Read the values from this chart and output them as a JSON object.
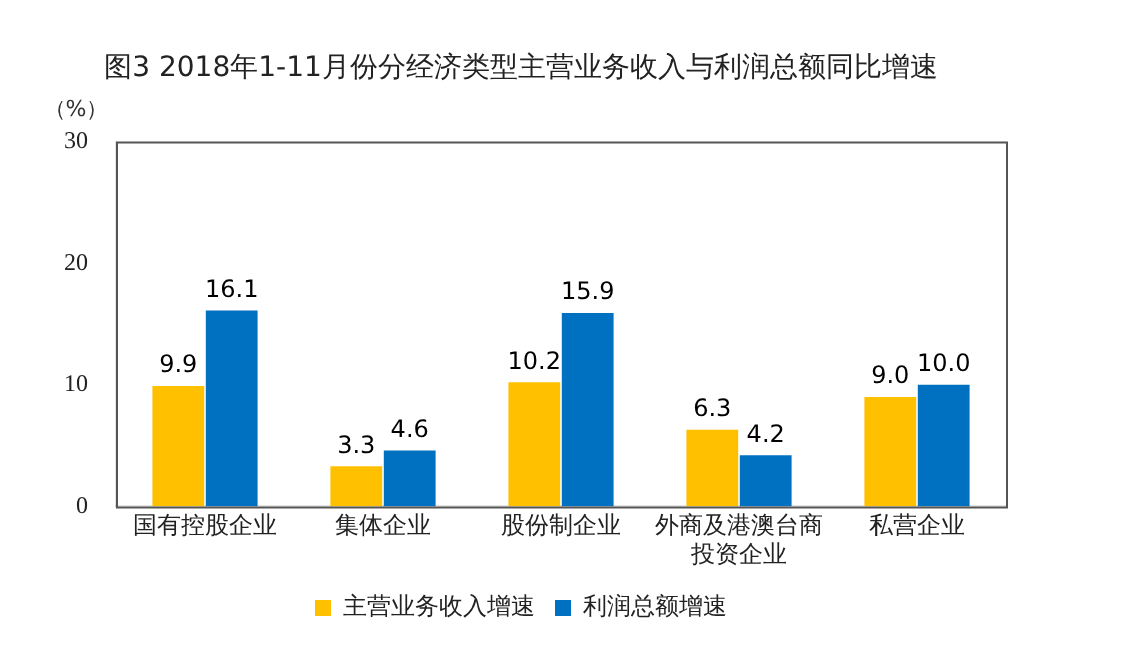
{
  "chart_data": {
    "type": "bar",
    "title": "图3 2018年1-11月份分经济类型主营业务收入与利润总额同比增速",
    "ylabel": "（%）",
    "categories": [
      "国有控股企业",
      "集体企业",
      "股份制企业",
      "外商及港澳台商投资企业",
      "私营企业"
    ],
    "series": [
      {
        "name": "主营业务收入增速",
        "color": "#ffc000",
        "values": [
          9.9,
          3.3,
          10.2,
          6.3,
          9.0
        ],
        "value_labels": [
          "9.9",
          "3.3",
          "10.2",
          "6.3",
          "9.0"
        ]
      },
      {
        "name": "利润总额增速",
        "color": "#0070c0",
        "values": [
          16.1,
          4.6,
          15.9,
          4.2,
          10.0
        ],
        "value_labels": [
          "16.1",
          "4.6",
          "15.9",
          "4.2",
          "10.0"
        ]
      }
    ],
    "ylim": [
      0,
      30
    ],
    "yticks": [
      0,
      10,
      20,
      30
    ],
    "grid": false,
    "legend": "bottom"
  }
}
